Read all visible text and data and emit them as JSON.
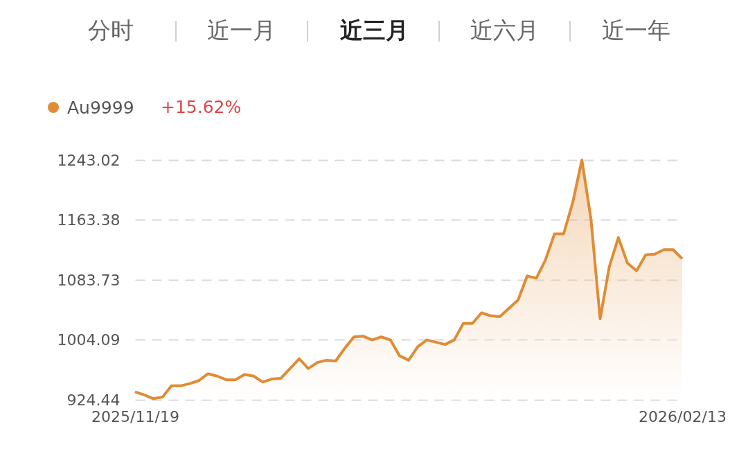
{
  "chart_data": {
    "type": "area",
    "annotations": [
      "分时",
      "近一月",
      "近三月",
      "近六月",
      "近一年",
      "+15.62%"
    ],
    "categories": [
      "2025/11/19",
      null,
      null,
      null,
      null,
      null,
      null,
      null,
      null,
      null,
      null,
      null,
      null,
      null,
      null,
      null,
      null,
      null,
      null,
      null,
      null,
      null,
      null,
      null,
      null,
      null,
      null,
      null,
      null,
      null,
      null,
      null,
      null,
      null,
      null,
      null,
      null,
      null,
      null,
      null,
      null,
      null,
      null,
      null,
      null,
      null,
      null,
      null,
      null,
      null,
      null,
      null,
      null,
      null,
      null,
      null,
      null,
      null,
      null,
      null,
      "2026/02/13"
    ],
    "series": [
      {
        "name": "Au9999",
        "color": "#e08c35",
        "values": [
          935,
          931,
          926,
          928,
          943,
          943,
          946,
          950,
          959,
          956,
          951,
          951,
          958,
          956,
          948,
          952,
          953,
          966,
          979,
          966,
          974,
          977,
          976,
          993,
          1008,
          1009,
          1004,
          1008,
          1004,
          983,
          977,
          995,
          1004,
          1001,
          998,
          1004,
          1026,
          1026,
          1040,
          1036,
          1035,
          1046,
          1057,
          1089,
          1086,
          1110,
          1145,
          1145,
          1187,
          1243,
          1164,
          1032,
          1101,
          1140,
          1106,
          1096,
          1117,
          1118,
          1124,
          1124,
          1112
        ]
      }
    ],
    "ylim": [
      924.44,
      1243.02
    ],
    "yticks": [
      924.44,
      1004.09,
      1083.73,
      1163.38,
      1243.02
    ],
    "grid": "y",
    "legend": "top left",
    "line_style": "solid"
  }
}
